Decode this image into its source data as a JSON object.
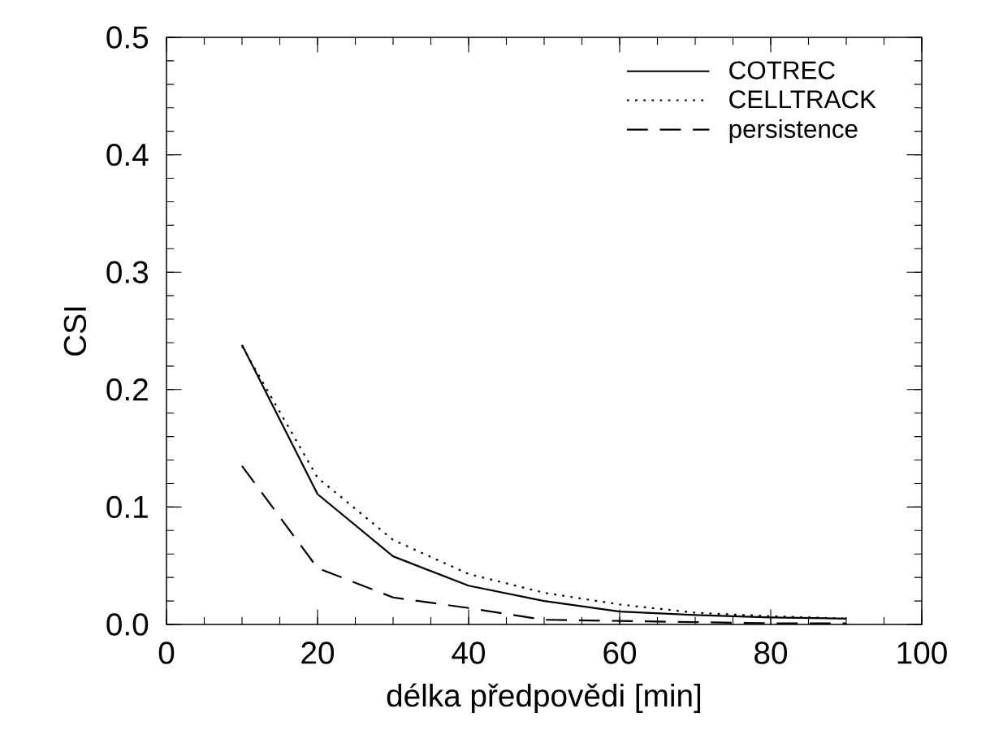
{
  "chart_data": {
    "type": "line",
    "xlabel": "délka předpovědi [min]",
    "ylabel": "CSI",
    "x": [
      10,
      20,
      30,
      40,
      50,
      60,
      70,
      80,
      90
    ],
    "series": [
      {
        "name": "COTREC",
        "color": "#000000",
        "line_style": "solid",
        "values": [
          0.238,
          0.111,
          0.058,
          0.033,
          0.02,
          0.011,
          0.008,
          0.006,
          0.005
        ]
      },
      {
        "name": "CELLTRACK",
        "color": "#000000",
        "line_style": "dotted",
        "values": [
          0.237,
          0.125,
          0.072,
          0.043,
          0.027,
          0.017,
          0.01,
          0.007,
          0.005
        ]
      },
      {
        "name": "persistence",
        "color": "#000000",
        "line_style": "dashed",
        "values": [
          0.135,
          0.048,
          0.023,
          0.014,
          0.004,
          0.003,
          0.002,
          0.001,
          0.001
        ]
      }
    ],
    "xlim": [
      0,
      100
    ],
    "ylim": [
      0,
      0.5
    ],
    "xticks": [
      0,
      {
        "value": 5,
        "label": null
      },
      {
        "value": 10,
        "label": null
      },
      {
        "value": 15,
        "label": null
      },
      20,
      {
        "value": 25,
        "label": null
      },
      {
        "value": 30,
        "label": null
      },
      {
        "value": 35,
        "label": null
      },
      40,
      {
        "value": 45,
        "label": null
      },
      {
        "value": 50,
        "label": null
      },
      {
        "value": 55,
        "label": null
      },
      60,
      {
        "value": 65,
        "label": null
      },
      {
        "value": 70,
        "label": null
      },
      {
        "value": 75,
        "label": null
      },
      80,
      {
        "value": 85,
        "label": null
      },
      {
        "value": 90,
        "label": null
      },
      {
        "value": 95,
        "label": null
      },
      100
    ],
    "yticks": [
      {
        "value": 0,
        "label": "0.0"
      },
      {
        "value": 0.02,
        "label": null
      },
      {
        "value": 0.04,
        "label": null
      },
      {
        "value": 0.06,
        "label": null
      },
      {
        "value": 0.08,
        "label": null
      },
      {
        "value": 0.1,
        "label": "0.1"
      },
      {
        "value": 0.12,
        "label": null
      },
      {
        "value": 0.14,
        "label": null
      },
      {
        "value": 0.16,
        "label": null
      },
      {
        "value": 0.18,
        "label": null
      },
      {
        "value": 0.2,
        "label": "0.2"
      },
      {
        "value": 0.22,
        "label": null
      },
      {
        "value": 0.24,
        "label": null
      },
      {
        "value": 0.26,
        "label": null
      },
      {
        "value": 0.28,
        "label": null
      },
      {
        "value": 0.3,
        "label": "0.3"
      },
      {
        "value": 0.32,
        "label": null
      },
      {
        "value": 0.34,
        "label": null
      },
      {
        "value": 0.36,
        "label": null
      },
      {
        "value": 0.38,
        "label": null
      },
      {
        "value": 0.4,
        "label": "0.4"
      },
      {
        "value": 0.42,
        "label": null
      },
      {
        "value": 0.44,
        "label": null
      },
      {
        "value": 0.46,
        "label": null
      },
      {
        "value": 0.48,
        "label": null
      },
      {
        "value": 0.5,
        "label": "0.5"
      }
    ],
    "legend": "top right",
    "grid": false,
    "marker": "none"
  }
}
